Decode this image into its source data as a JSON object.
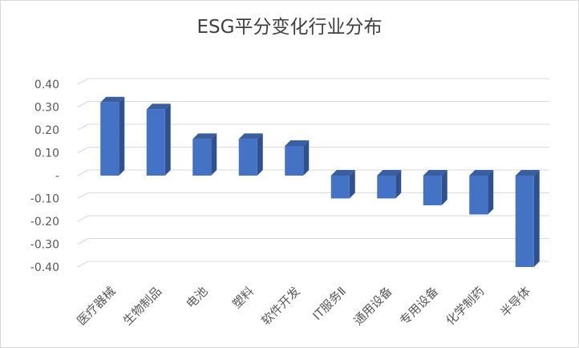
{
  "chart_data": {
    "type": "bar",
    "title": "ESG平分变化行业分布",
    "xlabel": "",
    "ylabel": "",
    "ylim": [
      -0.4,
      0.4
    ],
    "y_ticks": [
      "0.40",
      "0.30",
      "0.20",
      "0.10",
      "-",
      "-0.10",
      "-0.20",
      "-0.30",
      "-0.40"
    ],
    "categories": [
      "医疗器械",
      "生物制品",
      "电池",
      "塑料",
      "软件开发",
      "IT服务Ⅱ",
      "通用设备",
      "专用设备",
      "化学制药",
      "半导体"
    ],
    "values": [
      0.32,
      0.29,
      0.16,
      0.16,
      0.13,
      -0.1,
      -0.1,
      -0.13,
      -0.17,
      -0.4
    ],
    "grid": true,
    "legend": "none",
    "colors": {
      "bar_front": "#4472c4",
      "bar_side": "#2f528f",
      "bar_top": "#3a5f9e",
      "grid": "#d9d9d9",
      "text": "#595959"
    }
  }
}
